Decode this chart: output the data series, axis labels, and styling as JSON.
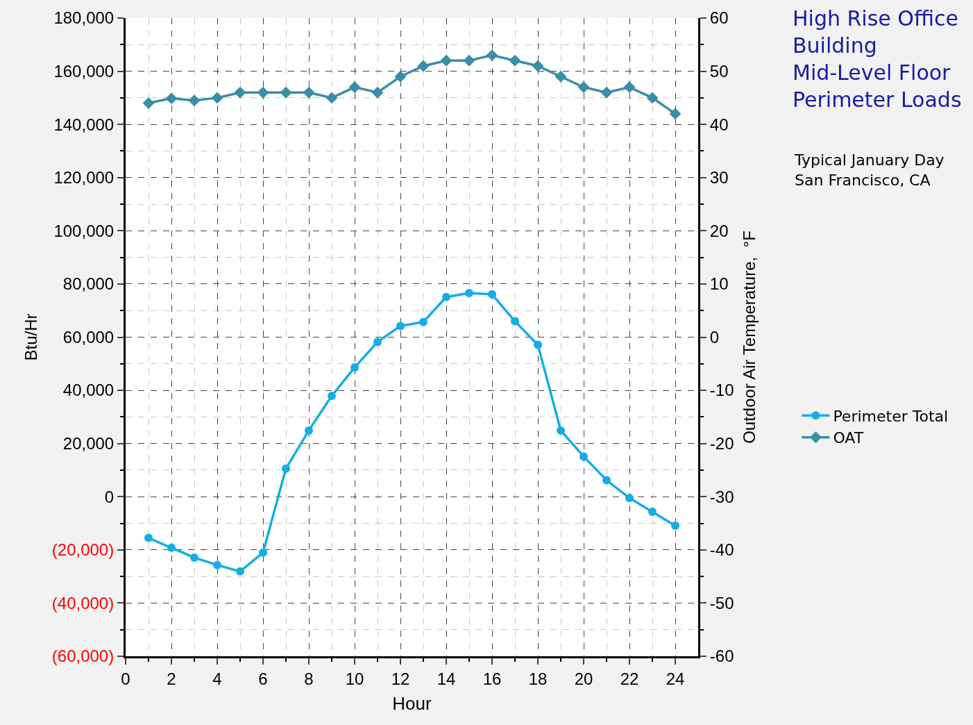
{
  "chart_data": {
    "type": "line",
    "title": "High Rise Office Building Mid-Level Floor Perimeter Loads",
    "subtitle": "Typical January Day\nSan Francisco, CA",
    "xlabel": "Hour",
    "ylabel": "Btu/Hr",
    "y2label": "Outdoor Air Temperature,  °F",
    "x": [
      1,
      2,
      3,
      4,
      5,
      6,
      7,
      8,
      9,
      10,
      11,
      12,
      13,
      14,
      15,
      16,
      17,
      18,
      19,
      20,
      21,
      22,
      23,
      24
    ],
    "series": [
      {
        "name": "Perimeter Total",
        "color": "#15ade6",
        "marker": "circle",
        "values": [
          -15500,
          -19200,
          -22900,
          -25700,
          -28100,
          -21000,
          10600,
          24900,
          37900,
          48600,
          58200,
          64200,
          65700,
          75100,
          76600,
          76100,
          66000,
          57100,
          24900,
          15100,
          6200,
          -500,
          -5700,
          -10900
        ]
      },
      {
        "name": "OAT",
        "color": "#3a8ea6",
        "marker": "diamond",
        "axis": "y2",
        "values": [
          44,
          44.9,
          44.5,
          45,
          46,
          46,
          46,
          46,
          45,
          47,
          46,
          49,
          51,
          52,
          52,
          53,
          52,
          51,
          49,
          47,
          46,
          47,
          45,
          42
        ]
      }
    ],
    "xlim": [
      0,
      25
    ],
    "xticks": [
      0,
      2,
      4,
      6,
      8,
      10,
      12,
      14,
      16,
      18,
      20,
      22,
      24
    ],
    "ylim": [
      -60000,
      180000
    ],
    "yticks": [
      {
        "value": -60000,
        "label": "(60,000)"
      },
      {
        "value": -40000,
        "label": "(40,000)"
      },
      {
        "value": -20000,
        "label": "(20,000)"
      },
      {
        "value": 0,
        "label": "0"
      },
      {
        "value": 20000,
        "label": "20,000"
      },
      {
        "value": 40000,
        "label": "40,000"
      },
      {
        "value": 60000,
        "label": "60,000"
      },
      {
        "value": 80000,
        "label": "80,000"
      },
      {
        "value": 100000,
        "label": "100,000"
      },
      {
        "value": 120000,
        "label": "120,000"
      },
      {
        "value": 140000,
        "label": "140,000"
      },
      {
        "value": 160000,
        "label": "160,000"
      },
      {
        "value": 180000,
        "label": "180,000"
      }
    ],
    "y2lim": [
      -60,
      60
    ],
    "y2ticks": [
      -60,
      -50,
      -40,
      -30,
      -20,
      -10,
      0,
      10,
      20,
      30,
      40,
      50,
      60
    ],
    "grid": true,
    "legend": "right",
    "line_style": "solid"
  }
}
